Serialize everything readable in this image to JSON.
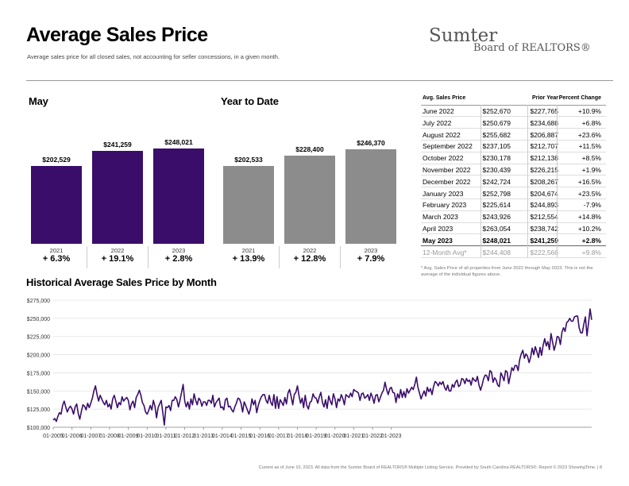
{
  "header": {
    "title": "Average Sales Price",
    "subtitle": "Average sales price for all closed sales, not accounting for seller concessions, in a given month."
  },
  "logo": {
    "line1": "Sumter",
    "line2": "Board of REALTORS®"
  },
  "colors": {
    "may_bar": "#3a0d6b",
    "ytd_bar": "#8c8c8c",
    "line": "#3a0d6b"
  },
  "may": {
    "title": "May",
    "bars": [
      {
        "year": "2021",
        "value": 202529,
        "label": "$202,529",
        "pct": "+ 6.3%"
      },
      {
        "year": "2022",
        "value": 241259,
        "label": "$241,259",
        "pct": "+ 19.1%"
      },
      {
        "year": "2023",
        "value": 248021,
        "label": "$248,021",
        "pct": "+ 2.8%"
      }
    ]
  },
  "ytd": {
    "title": "Year to Date",
    "bars": [
      {
        "year": "2021",
        "value": 202533,
        "label": "$202,533",
        "pct": "+ 13.9%"
      },
      {
        "year": "2022",
        "value": 228400,
        "label": "$228,400",
        "pct": "+ 12.8%"
      },
      {
        "year": "2023",
        "value": 246370,
        "label": "$246,370",
        "pct": "+ 7.9%"
      }
    ]
  },
  "table": {
    "headers": {
      "month": "Avg. Sales Price",
      "avg": "",
      "prior": "Prior Year",
      "pct": "Percent Change"
    },
    "rows": [
      {
        "month": "June 2022",
        "avg": "$252,670",
        "prior": "$227,765",
        "pct": "+10.9%"
      },
      {
        "month": "July 2022",
        "avg": "$250,679",
        "prior": "$234,688",
        "pct": "+6.8%"
      },
      {
        "month": "August 2022",
        "avg": "$255,682",
        "prior": "$206,887",
        "pct": "+23.6%"
      },
      {
        "month": "September 2022",
        "avg": "$237,105",
        "prior": "$212,707",
        "pct": "+11.5%"
      },
      {
        "month": "October 2022",
        "avg": "$230,178",
        "prior": "$212,138",
        "pct": "+8.5%"
      },
      {
        "month": "November 2022",
        "avg": "$230,439",
        "prior": "$226,215",
        "pct": "+1.9%"
      },
      {
        "month": "December 2022",
        "avg": "$242,724",
        "prior": "$208,267",
        "pct": "+16.5%"
      },
      {
        "month": "January 2023",
        "avg": "$252,798",
        "prior": "$204,674",
        "pct": "+23.5%"
      },
      {
        "month": "February 2023",
        "avg": "$225,614",
        "prior": "$244,893",
        "pct": "-7.9%"
      },
      {
        "month": "March 2023",
        "avg": "$243,926",
        "prior": "$212,554",
        "pct": "+14.8%"
      },
      {
        "month": "April 2023",
        "avg": "$263,054",
        "prior": "$238,742",
        "pct": "+10.2%"
      },
      {
        "month": "May 2023",
        "avg": "$248,021",
        "prior": "$241,259",
        "pct": "+2.8%"
      },
      {
        "month": "12-Month Avg*",
        "avg": "$244,408",
        "prior": "$222,566",
        "pct": "+9.8%"
      }
    ],
    "note": "* Avg. Sales Price of all properties from June 2022 through May 2023. This is not the average of the individual figures above."
  },
  "chart_data": {
    "type": "line",
    "title": "Historical Average Sales Price by Month",
    "xlabel": "",
    "ylabel": "",
    "ylim": [
      100000,
      275000
    ],
    "y_ticks": [
      "$100,000",
      "$125,000",
      "$150,000",
      "$175,000",
      "$200,000",
      "$225,000",
      "$250,000",
      "$275,000"
    ],
    "x_ticks": [
      "01-2005",
      "01-2006",
      "01-2007",
      "01-2008",
      "01-2009",
      "01-2010",
      "01-2011",
      "01-2012",
      "01-2013",
      "01-2014",
      "01-2015",
      "01-2016",
      "01-2017",
      "01-2018",
      "01-2019",
      "01-2020",
      "01-2021",
      "01-2022",
      "01-2023"
    ],
    "grid": true,
    "series": [
      {
        "start": "2005-01",
        "values": [
          110000,
          112000,
          108000,
          115000,
          120000,
          118000,
          130000,
          136000,
          128000,
          121000,
          126000,
          129000,
          125000,
          118000,
          128000,
          132000,
          119000,
          111000,
          122000,
          131000,
          129000,
          124000,
          133000,
          127000,
          133000,
          140000,
          150000,
          157000,
          145000,
          136000,
          144000,
          139000,
          134000,
          131000,
          137000,
          128000,
          132000,
          125000,
          139000,
          144000,
          136000,
          127000,
          134000,
          131000,
          142000,
          136000,
          139000,
          141000,
          137000,
          124000,
          132000,
          136000,
          127000,
          141000,
          145000,
          151000,
          144000,
          134000,
          130000,
          121000,
          118000,
          123000,
          130000,
          124000,
          137000,
          129000,
          113000,
          127000,
          132000,
          137000,
          120000,
          103000,
          128000,
          127000,
          130000,
          123000,
          137000,
          137000,
          142000,
          138000,
          128000,
          137000,
          148000,
          159000,
          136000,
          128000,
          135000,
          125000,
          139000,
          131000,
          146000,
          137000,
          131000,
          140000,
          137000,
          129000,
          135000,
          135000,
          130000,
          137000,
          137000,
          133000,
          144000,
          128000,
          134000,
          137000,
          140000,
          127000,
          128000,
          124000,
          138000,
          140000,
          128000,
          129000,
          124000,
          121000,
          128000,
          133000,
          140000,
          139000,
          133000,
          121000,
          135000,
          130000,
          124000,
          118000,
          125000,
          139000,
          131000,
          137000,
          120000,
          130000,
          137000,
          142000,
          145000,
          145000,
          137000,
          133000,
          144000,
          134000,
          130000,
          145000,
          126000,
          142000,
          126000,
          138000,
          134000,
          130000,
          141000,
          132000,
          147000,
          152000,
          142000,
          131000,
          145000,
          148000,
          157000,
          144000,
          133000,
          140000,
          127000,
          144000,
          130000,
          125000,
          134000,
          136000,
          146000,
          141000,
          140000,
          133000,
          142000,
          148000,
          134000,
          128000,
          138000,
          126000,
          143000,
          136000,
          131000,
          146000,
          139000,
          127000,
          139000,
          136000,
          145000,
          140000,
          131000,
          145000,
          143000,
          141000,
          147000,
          142000,
          152000,
          150000,
          149000,
          147000,
          137000,
          146000,
          147000,
          140000,
          142000,
          145000,
          137000,
          147000,
          141000,
          133000,
          144000,
          145000,
          135000,
          141000,
          147000,
          151000,
          162000,
          152000,
          145000,
          153000,
          155000,
          148000,
          147000,
          134000,
          146000,
          140000,
          152000,
          141000,
          149000,
          141000,
          153000,
          147000,
          151000,
          155000,
          152000,
          159000,
          169000,
          155000,
          147000,
          139000,
          145000,
          150000,
          143000,
          155000,
          149000,
          153000,
          145000,
          156000,
          163000,
          161000,
          157000,
          162000,
          159000,
          163000,
          155000,
          151000,
          158000,
          150000,
          150000,
          159000,
          155000,
          162000,
          165000,
          156000,
          158000,
          167000,
          166000,
          160000,
          167000,
          163000,
          165000,
          158000,
          168000,
          165000,
          163000,
          170000,
          158000,
          151000,
          158000,
          167000,
          172000,
          171000,
          164000,
          178000,
          176000,
          162000,
          168000,
          165000,
          158000,
          156000,
          175000,
          170000,
          164000,
          178000,
          176000,
          160000,
          171000,
          182000,
          178000,
          185000,
          185000,
          178000,
          193000,
          201000,
          206000,
          195000,
          201000,
          198000,
          189000,
          196000,
          209000,
          200000,
          211000,
          204000,
          196000,
          210000,
          199000,
          213000,
          222000,
          212000,
          218000,
          207000,
          229000,
          218000,
          206000,
          214000,
          225000,
          224000,
          214000,
          231000,
          237000,
          232000,
          244000,
          246000,
          250000,
          246000,
          246000,
          252000,
          253000,
          253000,
          237000,
          230000,
          230000,
          242000,
          252000,
          226000,
          244000,
          263000,
          248000
        ]
      }
    ]
  },
  "footer": "Current as of June 10, 2023. All data from the Sumter Board of REALTORS® Multiple Listing Service. Provided by South Carolina REALTORS®. Report © 2023 ShowingTime. | 8"
}
